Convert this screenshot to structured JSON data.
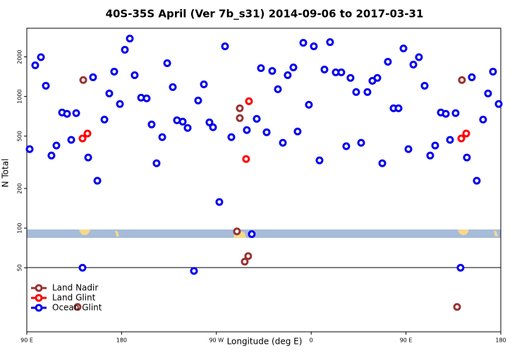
{
  "chart_data": {
    "type": "scatter",
    "title": "40S-35S April (Ver 7b_s31)   2014-09-06 to 2017-03-31",
    "x_label": "Longitude (deg E)",
    "y_label": "N Total",
    "xlim": [
      90,
      540
    ],
    "xticks": [
      {
        "value": 90,
        "label": "90 E"
      },
      180,
      {
        "value": 270,
        "label": "90 W"
      },
      {
        "value": 360,
        "label": "0"
      },
      {
        "value": 450,
        "label": "90 E"
      },
      {
        "value": 540,
        "label": "180"
      }
    ],
    "ylim": [
      16.3,
      3300
    ],
    "yscale": "log",
    "yticks": [
      50,
      100,
      200,
      500,
      1000,
      2000
    ],
    "legend": "lower left",
    "series": [
      {
        "name": "Land Nadir",
        "color": "#993333",
        "x": [
          143.6,
          138.2,
          289.5,
          292.2,
          292.2,
          300.2,
          296.9,
          503.1,
          498.5
        ],
        "values": [
          1333,
          25.2,
          94.4,
          814,
          685,
          61.3,
          55.6,
          1333,
          25.2
        ]
      },
      {
        "name": "Land Glint",
        "color": "#ff0000",
        "x": [
          142.9,
          147.6,
          300.9,
          298.2,
          502.5,
          507.2
        ],
        "values": [
          480,
          523,
          921,
          335,
          480,
          523
        ]
      },
      {
        "name": "Ocean Glint",
        "color": "#0000ee",
        "x": [
          92.7,
          98.0,
          103.4,
          108.1,
          113.4,
          118.1,
          123.5,
          128.2,
          132.2,
          136.9,
          142.9,
          148.3,
          152.9,
          157.0,
          163.7,
          168.3,
          173.0,
          178.4,
          183.1,
          187.8,
          192.4,
          198.5,
          203.8,
          208.5,
          213.2,
          218.6,
          223.3,
          228.6,
          232.6,
          238.0,
          242.7,
          248.7,
          252.7,
          258.1,
          263.4,
          266.8,
          272.8,
          278.2,
          284.2,
          298.9,
          303.6,
          308.3,
          312.3,
          317.7,
          323.0,
          328.4,
          333.1,
          337.7,
          343.1,
          347.1,
          352.5,
          357.8,
          362.5,
          367.9,
          372.6,
          377.9,
          383.3,
          388.6,
          393.3,
          397.3,
          402.7,
          407.4,
          413.4,
          418.1,
          422.8,
          427.5,
          432.8,
          438.2,
          442.9,
          447.6,
          452.3,
          457.0,
          462.3,
          467.7,
          473.0,
          477.7,
          483.1,
          487.8,
          491.8,
          497.1,
          501.8,
          507.8,
          512.5,
          517.2,
          523.2,
          527.9,
          532.6,
          538.0
        ],
        "values": [
          398,
          1726,
          1990,
          1207,
          356,
          424,
          756,
          738,
          468,
          747,
          50,
          344,
          1400,
          229,
          668,
          1054,
          1545,
          877,
          2263,
          2755,
          1452,
          979,
          967,
          613,
          311,
          491,
          1791,
          1178,
          660,
          644,
          577,
          47.3,
          932,
          1237,
          636,
          584,
          158,
          2405,
          491,
          556,
          90,
          676,
          1642,
          535,
          1563,
          1135,
          445,
          1452,
          1662,
          542,
          2558,
          865,
          2405,
          327,
          1602,
          2588,
          1525,
          1525,
          419,
          1383,
          1081,
          445,
          1081,
          1315,
          1383,
          311,
          1835,
          814,
          814,
          2318,
          398,
          1747,
          1990,
          1207,
          356,
          424,
          756,
          738,
          468,
          747,
          50,
          344,
          1400,
          229,
          668,
          1054,
          1545,
          877
        ]
      }
    ]
  }
}
